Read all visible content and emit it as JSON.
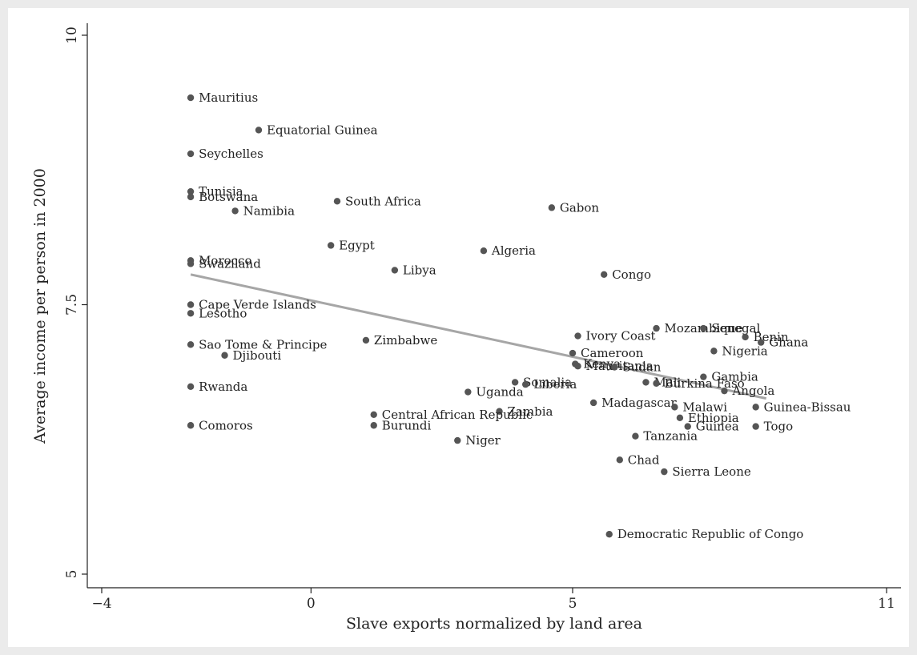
{
  "chart_data": {
    "type": "scatter",
    "title": "",
    "xlabel": "Slave exports normalized by land area",
    "ylabel": "Average income per person in 2000",
    "xlim": [
      -4,
      11
    ],
    "ylim": [
      5,
      10
    ],
    "xticks": [
      -4,
      0,
      5,
      11
    ],
    "yticks": [
      5,
      7.5,
      10
    ],
    "xtick_labels": [
      "−4",
      "0",
      "5",
      "11"
    ],
    "ytick_labels": [
      "5",
      "7.5",
      "10"
    ],
    "grid": false,
    "legend": "none",
    "marker_color": "#555555",
    "fit_line_color": "#a6a6a6",
    "fit_line": {
      "x": [
        -2.3,
        8.7
      ],
      "y": [
        7.78,
        6.63
      ]
    },
    "points": [
      {
        "label": "Mauritius",
        "x": -2.3,
        "y": 9.42
      },
      {
        "label": "Equatorial Guinea",
        "x": -1.0,
        "y": 9.12
      },
      {
        "label": "Seychelles",
        "x": -2.3,
        "y": 8.9
      },
      {
        "label": "Tunisia",
        "x": -2.3,
        "y": 8.55
      },
      {
        "label": "Botswana",
        "x": -2.3,
        "y": 8.5
      },
      {
        "label": "Namibia",
        "x": -1.45,
        "y": 8.37
      },
      {
        "label": "South Africa",
        "x": 0.5,
        "y": 8.46
      },
      {
        "label": "Gabon",
        "x": 4.6,
        "y": 8.4
      },
      {
        "label": "Egypt",
        "x": 0.38,
        "y": 8.05
      },
      {
        "label": "Algeria",
        "x": 3.3,
        "y": 8.0
      },
      {
        "label": "Morocco",
        "x": -2.3,
        "y": 7.91
      },
      {
        "label": "Swaziland",
        "x": -2.3,
        "y": 7.88
      },
      {
        "label": "Libya",
        "x": 1.6,
        "y": 7.82
      },
      {
        "label": "Congo",
        "x": 5.6,
        "y": 7.78
      },
      {
        "label": "Cape Verde Islands",
        "x": -2.3,
        "y": 7.5
      },
      {
        "label": "Lesotho",
        "x": -2.3,
        "y": 7.42
      },
      {
        "label": "Sao Tome & Principe",
        "x": -2.3,
        "y": 7.13
      },
      {
        "label": "Zimbabwe",
        "x": 1.05,
        "y": 7.17
      },
      {
        "label": "Djibouti",
        "x": -1.65,
        "y": 7.03
      },
      {
        "label": "Ivory Coast",
        "x": 5.1,
        "y": 7.21
      },
      {
        "label": "Mozambique",
        "x": 6.6,
        "y": 7.28
      },
      {
        "label": "Senegal",
        "x": 7.5,
        "y": 7.28
      },
      {
        "label": "Benin",
        "x": 8.3,
        "y": 7.2
      },
      {
        "label": "Ghana",
        "x": 8.6,
        "y": 7.15
      },
      {
        "label": "Nigeria",
        "x": 7.7,
        "y": 7.07
      },
      {
        "label": "Cameroon",
        "x": 5.0,
        "y": 7.05
      },
      {
        "label": "Kenya",
        "x": 5.05,
        "y": 6.95
      },
      {
        "label": "Mauritania",
        "x": 5.1,
        "y": 6.93
      },
      {
        "label": "Sudan",
        "x": 5.8,
        "y": 6.92
      },
      {
        "label": "Gambia",
        "x": 7.5,
        "y": 6.83
      },
      {
        "label": "Mali",
        "x": 6.4,
        "y": 6.78
      },
      {
        "label": "Burkina Faso",
        "x": 6.6,
        "y": 6.77
      },
      {
        "label": "Angola",
        "x": 7.9,
        "y": 6.7
      },
      {
        "label": "Somalia",
        "x": 3.9,
        "y": 6.78
      },
      {
        "label": "Liberia",
        "x": 4.1,
        "y": 6.76
      },
      {
        "label": "Uganda",
        "x": 3.0,
        "y": 6.69
      },
      {
        "label": "Rwanda",
        "x": -2.3,
        "y": 6.74
      },
      {
        "label": "Madagascar",
        "x": 5.4,
        "y": 6.59
      },
      {
        "label": "Malawi",
        "x": 6.95,
        "y": 6.55
      },
      {
        "label": "Ethiopia",
        "x": 7.05,
        "y": 6.45
      },
      {
        "label": "Guinea-Bissau",
        "x": 8.5,
        "y": 6.55
      },
      {
        "label": "Guinea",
        "x": 7.2,
        "y": 6.37
      },
      {
        "label": "Togo",
        "x": 8.5,
        "y": 6.37
      },
      {
        "label": "Zambia",
        "x": 3.6,
        "y": 6.51
      },
      {
        "label": "Central African Republic",
        "x": 1.2,
        "y": 6.48
      },
      {
        "label": "Burundi",
        "x": 1.2,
        "y": 6.38
      },
      {
        "label": "Comoros",
        "x": -2.3,
        "y": 6.38
      },
      {
        "label": "Tanzania",
        "x": 6.2,
        "y": 6.28
      },
      {
        "label": "Niger",
        "x": 2.8,
        "y": 6.24
      },
      {
        "label": "Chad",
        "x": 5.9,
        "y": 6.06
      },
      {
        "label": "Sierra Leone",
        "x": 6.75,
        "y": 5.95
      },
      {
        "label": "Democratic Republic of Congo",
        "x": 5.7,
        "y": 5.37
      }
    ]
  }
}
